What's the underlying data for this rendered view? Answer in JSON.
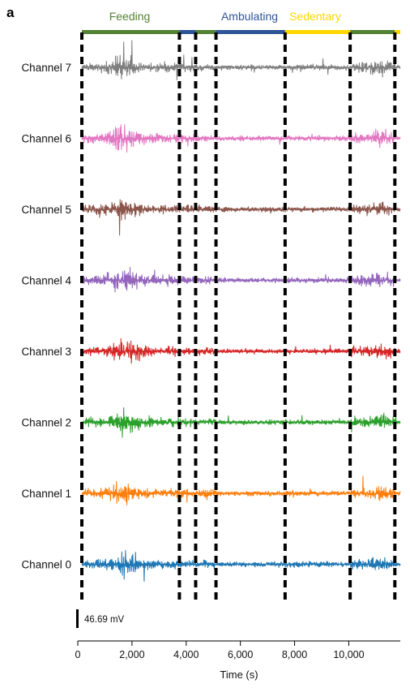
{
  "panel_label": "a",
  "scale_bar_label": "46.69 mV",
  "chart_data": {
    "type": "line",
    "xlabel": "Time (s)",
    "xlim": [
      0,
      11900
    ],
    "x_ticks": [
      0,
      2000,
      4000,
      6000,
      8000,
      10000
    ],
    "x_tick_labels": [
      "0",
      "2,000",
      "4,000",
      "6,000",
      "8,000",
      "10,000"
    ],
    "scale_bar_mV": 46.69,
    "behaviors": [
      {
        "label": "Feeding",
        "color": "#548235"
      },
      {
        "label": "Ambulating",
        "color": "#2F5597"
      },
      {
        "label": "Sedentary",
        "color": "#FFD700"
      }
    ],
    "behavior_segments": [
      {
        "behavior": "Feeding",
        "start": 150,
        "end": 3750
      },
      {
        "behavior": "Ambulating",
        "start": 3750,
        "end": 4350
      },
      {
        "behavior": "Feeding",
        "start": 4350,
        "end": 5100
      },
      {
        "behavior": "Ambulating",
        "start": 5100,
        "end": 7650
      },
      {
        "behavior": "Sedentary",
        "start": 7650,
        "end": 10050
      },
      {
        "behavior": "Feeding",
        "start": 10050,
        "end": 11700
      },
      {
        "behavior": "Sedentary",
        "start": 11700,
        "end": 11900
      }
    ],
    "boundaries": [
      150,
      3750,
      4350,
      5100,
      7650,
      10050,
      11700
    ],
    "series": [
      {
        "name": "Channel 7",
        "color": "#7f7f7f"
      },
      {
        "name": "Channel 6",
        "color": "#e377c2"
      },
      {
        "name": "Channel 5",
        "color": "#8c564b"
      },
      {
        "name": "Channel 4",
        "color": "#9467bd"
      },
      {
        "name": "Channel 3",
        "color": "#d62728"
      },
      {
        "name": "Channel 2",
        "color": "#2ca02c"
      },
      {
        "name": "Channel 1",
        "color": "#ff7f0e"
      },
      {
        "name": "Channel 0",
        "color": "#1f77b4"
      }
    ]
  }
}
